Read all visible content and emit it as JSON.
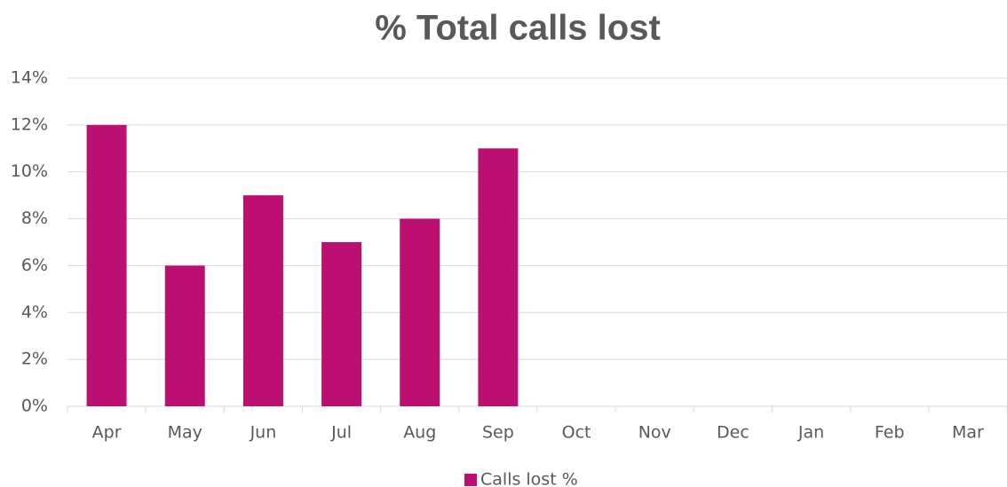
{
  "chart_data": {
    "type": "bar",
    "title": "% Total calls lost",
    "categories": [
      "Apr",
      "May",
      "Jun",
      "Jul",
      "Aug",
      "Sep",
      "Oct",
      "Nov",
      "Dec",
      "Jan",
      "Feb",
      "Mar"
    ],
    "series": [
      {
        "name": "Calls lost %",
        "color": "#bc0f72",
        "values": [
          12,
          6,
          9,
          7,
          8,
          11,
          null,
          null,
          null,
          null,
          null,
          null
        ]
      }
    ],
    "ylim": [
      0,
      14
    ],
    "yticks": [
      {
        "value": 0,
        "label": "0%"
      },
      {
        "value": 2,
        "label": "2%"
      },
      {
        "value": 4,
        "label": "4%"
      },
      {
        "value": 6,
        "label": "6%"
      },
      {
        "value": 8,
        "label": "8%"
      },
      {
        "value": 10,
        "label": "10%"
      },
      {
        "value": 12,
        "label": "12%"
      },
      {
        "value": 14,
        "label": "14%"
      }
    ],
    "grid": true,
    "legend": "bottom"
  }
}
